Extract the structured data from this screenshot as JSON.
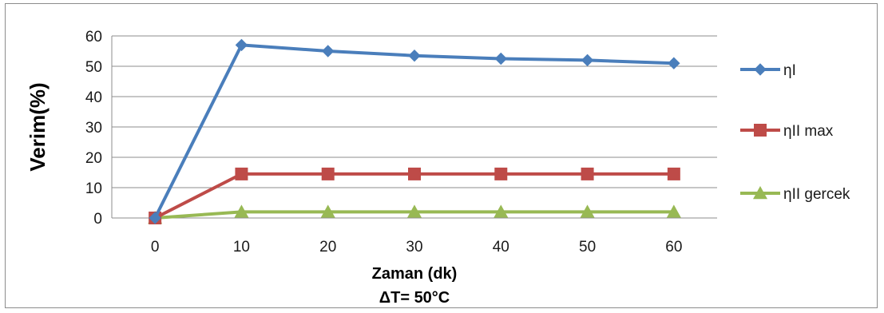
{
  "chart_data": {
    "type": "line",
    "x": [
      0,
      10,
      20,
      30,
      40,
      50,
      60
    ],
    "series": [
      {
        "name": "ηI",
        "values": [
          0,
          57,
          55,
          53.5,
          52.5,
          52,
          51
        ],
        "color": "#4a7ebb",
        "marker": "diamond"
      },
      {
        "name": "ηII max",
        "values": [
          0,
          14.5,
          14.5,
          14.5,
          14.5,
          14.5,
          14.5
        ],
        "color": "#be4b48",
        "marker": "square"
      },
      {
        "name": "ηII gercek",
        "values": [
          0,
          2,
          2,
          2,
          2,
          2,
          2
        ],
        "color": "#98b954",
        "marker": "triangle"
      }
    ],
    "xlabel": "Zaman (dk)",
    "xlabel2": "ΔT= 50°C",
    "ylabel": "Verim(%)",
    "ylim": [
      0,
      60
    ],
    "yticks": [
      0,
      10,
      20,
      30,
      40,
      50,
      60
    ],
    "grid": true,
    "legend_position": "right"
  }
}
